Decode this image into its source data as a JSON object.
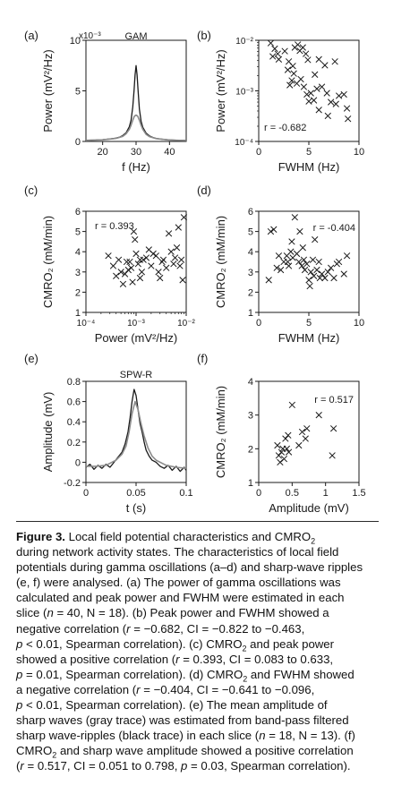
{
  "chart_data": [
    {
      "type": "line",
      "panel": "(a)",
      "title": "GAM",
      "xlabel": "f (Hz)",
      "ylabel": "Power (mV²/Hz)",
      "y_multiplier": "x10⁻³",
      "xlim": [
        15,
        45
      ],
      "ylim": [
        0,
        10
      ],
      "xticks": [
        20,
        30,
        40
      ],
      "yticks": [
        0,
        5,
        10
      ],
      "series": [
        {
          "color": "#1a1a1a",
          "x": [
            15,
            18,
            20,
            22,
            24,
            25,
            26,
            27,
            28,
            28.5,
            29,
            29.4,
            29.7,
            30,
            30.3,
            30.6,
            31,
            31.5,
            32,
            33,
            34,
            35,
            36,
            38,
            40,
            42,
            45
          ],
          "y": [
            0.12,
            0.14,
            0.18,
            0.24,
            0.33,
            0.42,
            0.58,
            0.85,
            1.45,
            2.1,
            3.4,
            5.1,
            6.6,
            7.5,
            6.6,
            5.1,
            3.2,
            2.0,
            1.4,
            0.82,
            0.55,
            0.4,
            0.3,
            0.2,
            0.15,
            0.12,
            0.1
          ]
        },
        {
          "color": "#8a8a8a",
          "x": [
            15,
            20,
            24,
            26,
            27,
            28,
            28.5,
            29,
            29.5,
            30,
            30.5,
            31,
            31.5,
            32,
            33,
            34,
            36,
            40,
            45
          ],
          "y": [
            0.1,
            0.16,
            0.3,
            0.5,
            0.75,
            1.2,
            1.6,
            2.1,
            2.5,
            2.6,
            2.5,
            2.1,
            1.6,
            1.2,
            0.7,
            0.48,
            0.28,
            0.14,
            0.09
          ]
        }
      ]
    },
    {
      "type": "scatter",
      "panel": "(b)",
      "xlabel": "FWHM (Hz)",
      "ylabel": "Power (mV²/Hz)",
      "xlim": [
        0,
        10
      ],
      "ylim": [
        0.0001,
        0.01
      ],
      "yscale": "log",
      "xticks": [
        0,
        5,
        10
      ],
      "ytick_labels": [
        "10⁻⁴",
        "10⁻³",
        "10⁻²"
      ],
      "annotation": "r = -0.682",
      "points": [
        [
          1.2,
          0.0088
        ],
        [
          1.6,
          0.0068
        ],
        [
          1.4,
          0.0048
        ],
        [
          2.0,
          0.0042
        ],
        [
          1.9,
          0.0054
        ],
        [
          2.6,
          0.0061
        ],
        [
          3.0,
          0.0038
        ],
        [
          3.4,
          0.0031
        ],
        [
          3.6,
          0.0072
        ],
        [
          3.9,
          0.0082
        ],
        [
          4.1,
          0.0062
        ],
        [
          4.4,
          0.0072
        ],
        [
          4.7,
          0.0054
        ],
        [
          4.9,
          0.0041
        ],
        [
          2.9,
          0.0026
        ],
        [
          3.3,
          0.0016
        ],
        [
          3.8,
          0.0014
        ],
        [
          3.5,
          0.0022
        ],
        [
          4.2,
          0.0017
        ],
        [
          4.5,
          0.0012
        ],
        [
          4.8,
          0.00085
        ],
        [
          5.2,
          0.0009
        ],
        [
          5.5,
          0.00065
        ],
        [
          5.0,
          0.00062
        ],
        [
          5.8,
          0.0011
        ],
        [
          6.3,
          0.0012
        ],
        [
          6.8,
          0.0009
        ],
        [
          7.2,
          0.0006
        ],
        [
          7.7,
          0.00055
        ],
        [
          8.0,
          0.0008
        ],
        [
          8.5,
          0.00085
        ],
        [
          8.8,
          0.00045
        ],
        [
          6.0,
          0.0042
        ],
        [
          6.6,
          0.0032
        ],
        [
          7.6,
          0.0038
        ],
        [
          3.1,
          0.0013
        ],
        [
          5.6,
          0.0021
        ],
        [
          6.0,
          0.00042
        ],
        [
          6.9,
          0.00032
        ],
        [
          8.9,
          0.00028
        ]
      ]
    },
    {
      "type": "scatter",
      "panel": "(c)",
      "xlabel": "Power (mV²/Hz)",
      "ylabel": "CMRO₂ (mM/min)",
      "xlim": [
        0.0001,
        0.01
      ],
      "xscale": "log",
      "ylim": [
        1,
        6
      ],
      "xtick_labels": [
        "10⁻⁴",
        "10⁻³",
        "10⁻²"
      ],
      "yticks": [
        1,
        2,
        3,
        4,
        5,
        6
      ],
      "annotation": "r = 0.393",
      "points": [
        [
          0.00028,
          3.8
        ],
        [
          0.00035,
          3.3
        ],
        [
          0.0004,
          2.8
        ],
        [
          0.00045,
          3.6
        ],
        [
          0.0005,
          3.0
        ],
        [
          0.00055,
          2.4
        ],
        [
          0.0006,
          2.9
        ],
        [
          0.00065,
          3.5
        ],
        [
          0.0007,
          3.1
        ],
        [
          0.00075,
          3.5
        ],
        [
          0.0008,
          3.2
        ],
        [
          0.0009,
          5.0
        ],
        [
          0.00095,
          4.6
        ],
        [
          0.001,
          3.9
        ],
        [
          0.0011,
          3.4
        ],
        [
          0.0012,
          3.6
        ],
        [
          0.0013,
          3.0
        ],
        [
          0.0014,
          3.6
        ],
        [
          0.0016,
          3.7
        ],
        [
          0.0018,
          4.1
        ],
        [
          0.002,
          3.3
        ],
        [
          0.0022,
          3.9
        ],
        [
          0.0025,
          3.8
        ],
        [
          0.0028,
          3.0
        ],
        [
          0.003,
          2.7
        ],
        [
          0.0035,
          3.6
        ],
        [
          0.004,
          3.2
        ],
        [
          0.0045,
          4.9
        ],
        [
          0.005,
          4.0
        ],
        [
          0.006,
          3.7
        ],
        [
          0.0065,
          4.2
        ],
        [
          0.007,
          5.2
        ],
        [
          0.0075,
          3.3
        ],
        [
          0.008,
          3.6
        ],
        [
          0.0085,
          2.6
        ],
        [
          0.009,
          5.7
        ],
        [
          0.00085,
          2.5
        ],
        [
          0.0012,
          2.7
        ],
        [
          0.0033,
          3.5
        ],
        [
          0.0056,
          3.4
        ]
      ]
    },
    {
      "type": "scatter",
      "panel": "(d)",
      "xlabel": "FWHM (Hz)",
      "ylabel": "CMRO₂ (mM/min)",
      "xlim": [
        0,
        10
      ],
      "ylim": [
        1,
        6
      ],
      "xticks": [
        0,
        5,
        10
      ],
      "yticks": [
        1,
        2,
        3,
        4,
        5,
        6
      ],
      "annotation": "r = -0.404",
      "points": [
        [
          1.0,
          2.6
        ],
        [
          1.2,
          5.0
        ],
        [
          1.5,
          5.1
        ],
        [
          1.8,
          3.2
        ],
        [
          2.0,
          3.8
        ],
        [
          2.2,
          3.1
        ],
        [
          2.5,
          3.5
        ],
        [
          2.8,
          3.8
        ],
        [
          3.0,
          3.3
        ],
        [
          3.2,
          4.0
        ],
        [
          3.4,
          3.7
        ],
        [
          3.6,
          5.7
        ],
        [
          3.8,
          3.9
        ],
        [
          4.0,
          3.5
        ],
        [
          4.1,
          5.0
        ],
        [
          4.3,
          3.3
        ],
        [
          4.5,
          3.6
        ],
        [
          4.6,
          3.1
        ],
        [
          4.8,
          3.4
        ],
        [
          5.0,
          2.6
        ],
        [
          5.1,
          2.3
        ],
        [
          5.2,
          3.0
        ],
        [
          5.4,
          3.6
        ],
        [
          5.6,
          4.6
        ],
        [
          5.8,
          3.1
        ],
        [
          6.0,
          3.5
        ],
        [
          6.3,
          2.9
        ],
        [
          6.6,
          2.7
        ],
        [
          6.9,
          3.0
        ],
        [
          7.2,
          3.2
        ],
        [
          7.5,
          2.7
        ],
        [
          7.8,
          3.4
        ],
        [
          8.0,
          3.5
        ],
        [
          8.5,
          2.9
        ],
        [
          8.8,
          3.8
        ],
        [
          6.1,
          2.7
        ],
        [
          3.3,
          4.5
        ],
        [
          4.4,
          4.2
        ],
        [
          2.9,
          3.5
        ],
        [
          5.5,
          2.8
        ]
      ]
    },
    {
      "type": "line",
      "panel": "(e)",
      "title": "SPW-R",
      "xlabel": "t (s)",
      "ylabel": "Amplitude (mV)",
      "xlim": [
        0,
        0.1
      ],
      "ylim": [
        -0.2,
        0.8
      ],
      "xticks": [
        0,
        0.05,
        0.1
      ],
      "yticks": [
        -0.2,
        0,
        0.2,
        0.4,
        0.6,
        0.8
      ],
      "series": [
        {
          "color": "#1a1a1a",
          "x": [
            0,
            0.004,
            0.008,
            0.012,
            0.016,
            0.02,
            0.024,
            0.028,
            0.032,
            0.036,
            0.039,
            0.042,
            0.044,
            0.046,
            0.048,
            0.05,
            0.052,
            0.054,
            0.056,
            0.058,
            0.06,
            0.063,
            0.066,
            0.07,
            0.074,
            0.078,
            0.082,
            0.086,
            0.09,
            0.094,
            0.098,
            0.1
          ],
          "y": [
            -0.05,
            -0.02,
            -0.07,
            -0.03,
            -0.06,
            -0.02,
            -0.05,
            0.0,
            0.05,
            0.1,
            0.18,
            0.3,
            0.44,
            0.6,
            0.72,
            0.66,
            0.52,
            0.38,
            0.3,
            0.2,
            0.12,
            0.06,
            0.02,
            0.0,
            -0.04,
            -0.06,
            -0.03,
            -0.08,
            -0.04,
            -0.09,
            -0.05,
            -0.08
          ]
        },
        {
          "color": "#8c8c8c",
          "x": [
            0,
            0.01,
            0.02,
            0.03,
            0.036,
            0.04,
            0.043,
            0.046,
            0.049,
            0.052,
            0.055,
            0.058,
            0.062,
            0.066,
            0.07,
            0.08,
            0.09,
            0.1
          ],
          "y": [
            -0.04,
            -0.04,
            -0.03,
            0.02,
            0.08,
            0.16,
            0.3,
            0.48,
            0.6,
            0.52,
            0.38,
            0.26,
            0.14,
            0.06,
            0.02,
            -0.03,
            -0.05,
            -0.06
          ]
        }
      ]
    },
    {
      "type": "scatter",
      "panel": "(f)",
      "xlabel": "Amplitude (mV)",
      "ylabel": "CMRO₂ (mM/min)",
      "xlim": [
        0,
        1.5
      ],
      "ylim": [
        1,
        4
      ],
      "xticks": [
        0,
        0.5,
        1,
        1.5
      ],
      "yticks": [
        1,
        2,
        3,
        4
      ],
      "annotation": "r = 0.517",
      "points": [
        [
          0.28,
          2.1
        ],
        [
          0.3,
          1.8
        ],
        [
          0.32,
          1.6
        ],
        [
          0.34,
          1.9
        ],
        [
          0.36,
          2.0
        ],
        [
          0.38,
          1.7
        ],
        [
          0.4,
          2.3
        ],
        [
          0.42,
          2.0
        ],
        [
          0.44,
          2.4
        ],
        [
          0.45,
          1.9
        ],
        [
          0.5,
          3.3
        ],
        [
          0.6,
          2.1
        ],
        [
          0.65,
          2.5
        ],
        [
          0.7,
          2.3
        ],
        [
          0.72,
          2.6
        ],
        [
          0.9,
          3.0
        ],
        [
          1.1,
          1.8
        ],
        [
          1.12,
          2.6
        ]
      ]
    }
  ],
  "caption": {
    "lines": [
      [
        {
          "t": "Figure 3.",
          "b": true
        },
        {
          "t": " Local field potential characteristics and CMRO"
        },
        {
          "t": "2",
          "sub": true
        }
      ],
      [
        {
          "t": "during network activity states. The characteristics of local field"
        }
      ],
      [
        {
          "t": "potentials during gamma oscillations (a–d) and sharp-wave ripples"
        }
      ],
      [
        {
          "t": "(e, f) were analysed. (a) The power of gamma oscillations was"
        }
      ],
      [
        {
          "t": "calculated and peak power and FWHM were estimated in each"
        }
      ],
      [
        {
          "t": "slice ("
        },
        {
          "t": "n",
          "i": true
        },
        {
          "t": " = 40, N = 18). (b) Peak power and FWHM showed a"
        }
      ],
      [
        {
          "t": "negative correlation ("
        },
        {
          "t": "r",
          "i": true
        },
        {
          "t": " = −0.682, CI = −0.822 to −0.463,"
        }
      ],
      [
        {
          "t": "p",
          "i": true
        },
        {
          "t": " < 0.01, Spearman correlation). (c) CMRO"
        },
        {
          "t": "2",
          "sub": true
        },
        {
          "t": " and peak power"
        }
      ],
      [
        {
          "t": "showed a positive correlation ("
        },
        {
          "t": "r",
          "i": true
        },
        {
          "t": " = 0.393, CI = 0.083 to 0.633,"
        }
      ],
      [
        {
          "t": "p",
          "i": true
        },
        {
          "t": " = 0.01, Spearman correlation). (d) CMRO"
        },
        {
          "t": "2",
          "sub": true
        },
        {
          "t": " and FWHM showed"
        }
      ],
      [
        {
          "t": "a negative correlation ("
        },
        {
          "t": "r",
          "i": true
        },
        {
          "t": " = −0.404, CI = −0.641 to −0.096,"
        }
      ],
      [
        {
          "t": "p",
          "i": true
        },
        {
          "t": " < 0.01, Spearman correlation). (e) The mean amplitude of"
        }
      ],
      [
        {
          "t": "sharp waves (gray trace) was estimated from band-pass filtered"
        }
      ],
      [
        {
          "t": "sharp wave-ripples (black trace) in each slice ("
        },
        {
          "t": "n",
          "i": true
        },
        {
          "t": " = 18, N = 13). (f)"
        }
      ],
      [
        {
          "t": "CMRO"
        },
        {
          "t": "2",
          "sub": true
        },
        {
          "t": " and sharp wave amplitude showed a positive correlation"
        }
      ],
      [
        {
          "t": "("
        },
        {
          "t": "r",
          "i": true
        },
        {
          "t": " = 0.517, CI = 0.051 to 0.798, "
        },
        {
          "t": "p",
          "i": true
        },
        {
          "t": " = 0.03, Spearman correlation)."
        }
      ]
    ]
  }
}
